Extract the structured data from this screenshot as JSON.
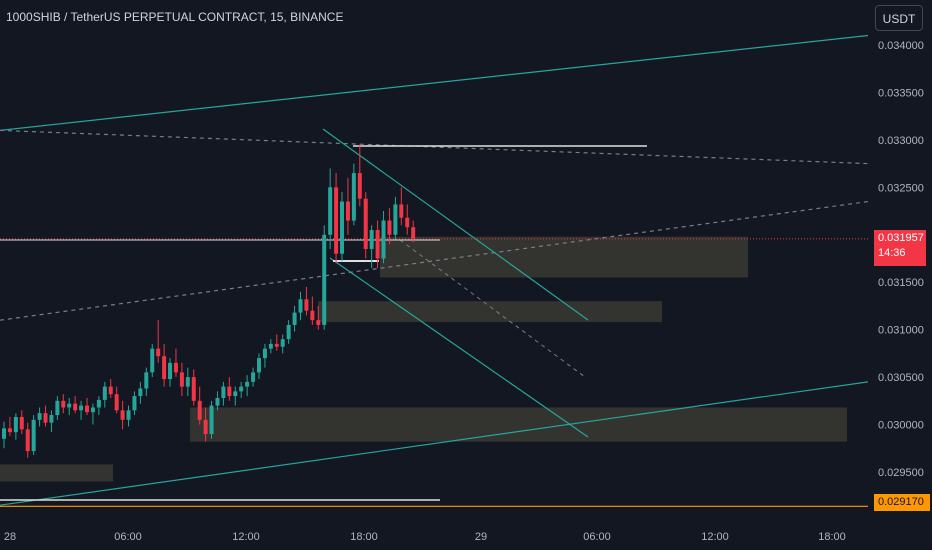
{
  "header": {
    "title": "1000SHIB / TetherUS PERPETUAL CONTRACT, 15, BINANCE",
    "unit_button": "USDT"
  },
  "price_tags": {
    "current_price": "0.031957",
    "countdown": "14:36",
    "horizontal_line": "0.029170"
  },
  "colors": {
    "background": "#131722",
    "up": "#26a69a",
    "down": "#f23645",
    "channel": "#26a69a",
    "zone": "#3a3a32",
    "axis_text": "#b2b5be",
    "hline": "#ff9800"
  },
  "chart_data": {
    "type": "candlestick",
    "symbol": "1000SHIB / TetherUS PERPETUAL CONTRACT",
    "interval": "15",
    "exchange": "BINANCE",
    "y_ticks": [
      "0.034000",
      "0.033500",
      "0.033000",
      "0.032500",
      "0.032000",
      "0.031500",
      "0.031000",
      "0.030500",
      "0.030000",
      "0.029500"
    ],
    "x_ticks": [
      "28",
      "06:00",
      "12:00",
      "18:00",
      "29",
      "06:00",
      "12:00",
      "18:00"
    ],
    "ylim": [
      0.029,
      0.0343
    ],
    "grid": false,
    "candles": [
      [
        0.02985,
        0.03003,
        0.02975,
        0.02996
      ],
      [
        0.02996,
        0.03008,
        0.02988,
        0.02992
      ],
      [
        0.02992,
        0.03012,
        0.02984,
        0.03008
      ],
      [
        0.03008,
        0.03015,
        0.0299,
        0.02995
      ],
      [
        0.02995,
        0.03002,
        0.02965,
        0.02972
      ],
      [
        0.02972,
        0.0301,
        0.02968,
        0.03005
      ],
      [
        0.03005,
        0.03018,
        0.02998,
        0.03012
      ],
      [
        0.03012,
        0.0302,
        0.02998,
        0.03002
      ],
      [
        0.03002,
        0.03015,
        0.02992,
        0.0301
      ],
      [
        0.0301,
        0.0303,
        0.03005,
        0.03025
      ],
      [
        0.03025,
        0.03032,
        0.03012,
        0.03018
      ],
      [
        0.03018,
        0.03028,
        0.0301,
        0.03022
      ],
      [
        0.03022,
        0.0303,
        0.03012,
        0.03015
      ],
      [
        0.03015,
        0.03025,
        0.03005,
        0.0302
      ],
      [
        0.0302,
        0.03028,
        0.0301,
        0.03013
      ],
      [
        0.03013,
        0.03022,
        0.03,
        0.03018
      ],
      [
        0.03018,
        0.0303,
        0.0301,
        0.03026
      ],
      [
        0.03026,
        0.03045,
        0.03018,
        0.0304
      ],
      [
        0.0304,
        0.03048,
        0.03028,
        0.03032
      ],
      [
        0.03032,
        0.0304,
        0.03012,
        0.03015
      ],
      [
        0.03015,
        0.03025,
        0.02995,
        0.03005
      ],
      [
        0.03005,
        0.0302,
        0.02998,
        0.03015
      ],
      [
        0.03015,
        0.03035,
        0.0301,
        0.0303
      ],
      [
        0.0303,
        0.03045,
        0.03022,
        0.03038
      ],
      [
        0.03038,
        0.0306,
        0.0303,
        0.03055
      ],
      [
        0.03055,
        0.03085,
        0.0305,
        0.0308
      ],
      [
        0.0308,
        0.0311,
        0.03065,
        0.03072
      ],
      [
        0.03072,
        0.03085,
        0.0304,
        0.03048
      ],
      [
        0.03048,
        0.0307,
        0.0304,
        0.03065
      ],
      [
        0.03065,
        0.0308,
        0.0305,
        0.03055
      ],
      [
        0.03055,
        0.03065,
        0.0303,
        0.0304
      ],
      [
        0.0304,
        0.0306,
        0.0303,
        0.0305
      ],
      [
        0.0305,
        0.03058,
        0.0302,
        0.03025
      ],
      [
        0.03025,
        0.0304,
        0.03,
        0.03005
      ],
      [
        0.03005,
        0.03018,
        0.02982,
        0.0299
      ],
      [
        0.0299,
        0.03025,
        0.02985,
        0.0302
      ],
      [
        0.0302,
        0.03035,
        0.03015,
        0.03028
      ],
      [
        0.03028,
        0.03045,
        0.0302,
        0.0304
      ],
      [
        0.0304,
        0.0305,
        0.03025,
        0.0303
      ],
      [
        0.0303,
        0.0304,
        0.0302,
        0.03035
      ],
      [
        0.03035,
        0.03045,
        0.03028,
        0.0304
      ],
      [
        0.0304,
        0.03052,
        0.0303,
        0.03045
      ],
      [
        0.03045,
        0.0306,
        0.0304,
        0.03055
      ],
      [
        0.03055,
        0.03075,
        0.03048,
        0.0307
      ],
      [
        0.0307,
        0.03085,
        0.0306,
        0.0308
      ],
      [
        0.0308,
        0.0309,
        0.03075,
        0.03085
      ],
      [
        0.03085,
        0.03095,
        0.03078,
        0.03082
      ],
      [
        0.03082,
        0.03095,
        0.03075,
        0.0309
      ],
      [
        0.0309,
        0.0311,
        0.03085,
        0.03105
      ],
      [
        0.03105,
        0.03125,
        0.03098,
        0.03118
      ],
      [
        0.03118,
        0.0314,
        0.0311,
        0.03132
      ],
      [
        0.03132,
        0.03145,
        0.03115,
        0.0312
      ],
      [
        0.0312,
        0.03135,
        0.03105,
        0.0311
      ],
      [
        0.0311,
        0.03125,
        0.031,
        0.03105
      ],
      [
        0.03105,
        0.0321,
        0.031,
        0.032
      ],
      [
        0.032,
        0.0327,
        0.03185,
        0.0325
      ],
      [
        0.0325,
        0.03265,
        0.0317,
        0.0318
      ],
      [
        0.0318,
        0.03245,
        0.03172,
        0.03235
      ],
      [
        0.03235,
        0.0326,
        0.032,
        0.03215
      ],
      [
        0.03215,
        0.03275,
        0.0321,
        0.03265
      ],
      [
        0.03265,
        0.03295,
        0.0323,
        0.03238
      ],
      [
        0.03238,
        0.03245,
        0.03175,
        0.03185
      ],
      [
        0.03185,
        0.0321,
        0.03165,
        0.03205
      ],
      [
        0.03205,
        0.03215,
        0.03165,
        0.03175
      ],
      [
        0.03175,
        0.03225,
        0.0317,
        0.03215
      ],
      [
        0.03215,
        0.03228,
        0.0319,
        0.032
      ],
      [
        0.032,
        0.0324,
        0.03195,
        0.03232
      ],
      [
        0.03232,
        0.0325,
        0.0321,
        0.03218
      ],
      [
        0.03218,
        0.03232,
        0.032,
        0.03208
      ],
      [
        0.03208,
        0.03215,
        0.03192,
        0.03196
      ]
    ],
    "trendlines": [
      {
        "from": [
          "28 00:00",
          0.0331
        ],
        "to": [
          "29 00:00+",
          0.0341
        ],
        "style": "solid"
      },
      {
        "from": [
          "28 00:00",
          0.02915
        ],
        "to": [
          "29 00:00+",
          0.03045
        ],
        "style": "solid"
      },
      {
        "from": [
          "28 00:00",
          0.0331
        ],
        "to": [
          "29 00:00+",
          0.03275
        ],
        "style": "dashed"
      },
      {
        "from": [
          "28 00:00",
          0.0311
        ],
        "to": [
          "29 00:00+",
          0.03235
        ],
        "style": "dashed"
      }
    ],
    "zones": [
      {
        "from": 0.03155,
        "to": 0.03198
      },
      {
        "from": 0.03108,
        "to": 0.0313
      },
      {
        "from": 0.02982,
        "to": 0.03018
      },
      {
        "from": 0.0294,
        "to": 0.02958
      }
    ],
    "horizontal_lines": [
      0.031957,
      0.02917,
      0.03195
    ]
  }
}
